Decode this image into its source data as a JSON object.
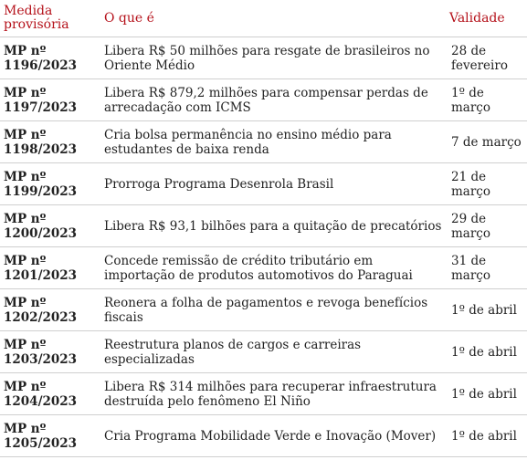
{
  "headers": {
    "measure": "Medida provisória",
    "what": "O que é",
    "validity": "Validade"
  },
  "rows": [
    {
      "mp": "MP nº 1196/2023",
      "description": "Libera R$ 50 milhões para resgate de brasileiros no Oriente Médio",
      "validity": "28 de fevereiro"
    },
    {
      "mp": "MP nº 1197/2023",
      "description": "Libera R$ 879,2 milhões para compensar perdas de arrecadação com ICMS",
      "validity": "1º de março"
    },
    {
      "mp": "MP nº 1198/2023",
      "description": "Cria bolsa permanência no ensino médio para estudantes de baixa renda",
      "validity": "7 de março"
    },
    {
      "mp": "MP nº 1199/2023",
      "description": "Prorroga Programa Desenrola Brasil",
      "validity": "21 de março"
    },
    {
      "mp": "MP nº 1200/2023",
      "description": "Libera R$ 93,1 bilhões para a quitação de precatórios",
      "validity": "29 de março"
    },
    {
      "mp": "MP nº 1201/2023",
      "description": "Concede remissão de crédito tributário em importação de produtos automotivos do Paraguai",
      "validity": "31 de março"
    },
    {
      "mp": "MP nº 1202/2023",
      "description": "Reonera a folha de pagamentos e revoga benefícios fiscais",
      "validity": "1º de abril"
    },
    {
      "mp": "MP nº 1203/2023",
      "description": "Reestrutura planos de cargos e carreiras especializadas",
      "validity": "1º de abril"
    },
    {
      "mp": "MP nº 1204/2023",
      "description": "Libera R$ 314 milhões para recuperar infraestrutura destruída pelo fenômeno El Niño",
      "validity": "1º de abril"
    },
    {
      "mp": "MP nº 1205/2023",
      "description": "Cria Programa Mobilidade Verde e Inovação (Mover)",
      "validity": "1º de abril"
    }
  ],
  "colors": {
    "header_text": "#b5121b",
    "body_text": "#222222",
    "row_divider": "#cfcfcf"
  }
}
